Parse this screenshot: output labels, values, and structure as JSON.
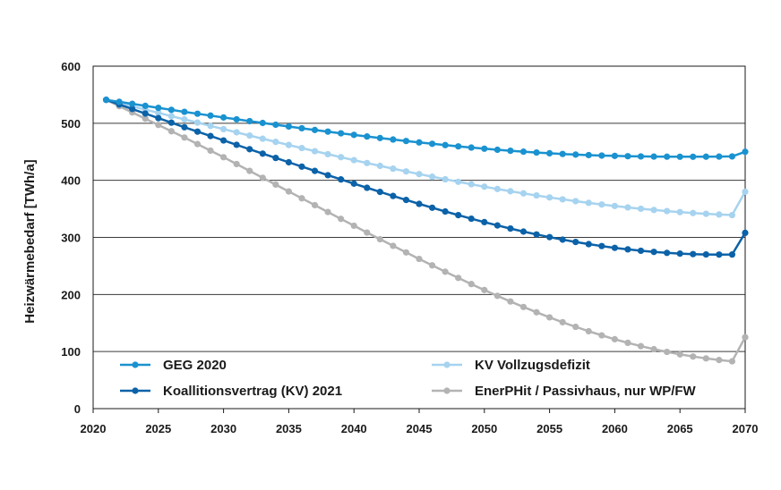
{
  "chart_data": {
    "type": "line",
    "title": "",
    "xlabel": "",
    "ylabel": "Heizwärmebedarf [TWh/a]",
    "xlim": [
      2020,
      2070
    ],
    "ylim": [
      0,
      600
    ],
    "xticks": [
      2020,
      2025,
      2030,
      2035,
      2040,
      2045,
      2050,
      2055,
      2060,
      2065,
      2070
    ],
    "yticks": [
      0,
      100,
      200,
      300,
      400,
      500,
      600
    ],
    "grid": "horizontal",
    "x": [
      2021,
      2022,
      2023,
      2024,
      2025,
      2026,
      2027,
      2028,
      2029,
      2030,
      2031,
      2032,
      2033,
      2034,
      2035,
      2036,
      2037,
      2038,
      2039,
      2040,
      2041,
      2042,
      2043,
      2044,
      2045,
      2046,
      2047,
      2048,
      2049,
      2050,
      2051,
      2052,
      2053,
      2054,
      2055,
      2056,
      2057,
      2058,
      2059,
      2060,
      2061,
      2062,
      2063,
      2064,
      2065,
      2066,
      2067,
      2068,
      2069,
      2070
    ],
    "series": [
      {
        "name": "GEG 2020",
        "color": "#1a92d0",
        "values": [
          541,
          537.5,
          534,
          530.5,
          527,
          523.5,
          520,
          516.7,
          513.4,
          510.1,
          506.9,
          503.7,
          500.5,
          497.4,
          494.3,
          491.2,
          488.2,
          485.3,
          482.4,
          479.6,
          476.8,
          474.1,
          471.5,
          468.9,
          466.4,
          464,
          461.7,
          459.5,
          457.4,
          455.4,
          453.5,
          451.8,
          450.2,
          448.7,
          447.4,
          446.2,
          445.1,
          444.2,
          443.4,
          442.8,
          442.3,
          441.9,
          441.6,
          441.4,
          441.3,
          441.3,
          441.4,
          441.6,
          441.9,
          450
        ]
      },
      {
        "name": "Koallitionsvertrag (KV) 2021",
        "color": "#0b62a8",
        "values": [
          541,
          533,
          525,
          517,
          509,
          501,
          493,
          485.3,
          477.6,
          469.9,
          462.2,
          454.5,
          446.8,
          439.2,
          431.6,
          424,
          416.5,
          409,
          401.6,
          394.2,
          386.9,
          379.7,
          372.6,
          365.6,
          358.7,
          352,
          345.4,
          339,
          332.8,
          326.8,
          321,
          315.5,
          310.2,
          305.2,
          300.5,
          296.1,
          292,
          288.2,
          284.8,
          281.7,
          279,
          276.6,
          274.6,
          272.9,
          271.6,
          270.7,
          270.1,
          269.9,
          270,
          308
        ]
      },
      {
        "name": "KV Vollzugsdefizit",
        "color": "#a6d3ef",
        "values": [
          541,
          535.3,
          529.6,
          523.9,
          518.2,
          512.5,
          506.8,
          501.1,
          495.4,
          489.7,
          484.1,
          478.5,
          472.9,
          467.4,
          461.9,
          456.5,
          451.1,
          445.8,
          440.6,
          435.4,
          430.3,
          425.3,
          420.4,
          415.6,
          410.9,
          406.3,
          401.8,
          397.4,
          393.1,
          388.9,
          384.8,
          380.9,
          377.1,
          373.5,
          370,
          366.7,
          363.5,
          360.5,
          357.7,
          355,
          352.5,
          350.2,
          348.1,
          346.1,
          344.3,
          342.7,
          341.3,
          340.1,
          339.1,
          380
        ]
      },
      {
        "name": "EnerPHit / Passivhaus, nur WP/FW",
        "color": "#b3b3b3",
        "values": [
          541,
          530,
          519,
          508,
          497,
          486,
          475,
          463.5,
          452,
          440.5,
          428.5,
          416.5,
          404.5,
          392.5,
          380.5,
          368.5,
          356.5,
          344.5,
          332.5,
          320.5,
          308.5,
          296.8,
          285.2,
          273.7,
          262.3,
          251,
          239.9,
          229,
          218.3,
          207.8,
          197.6,
          187.7,
          178.1,
          168.8,
          159.9,
          151.4,
          143.3,
          135.6,
          128.4,
          121.6,
          115.3,
          109.5,
          104.2,
          99.4,
          95.1,
          91.3,
          88,
          85.2,
          82.9,
          125
        ]
      }
    ],
    "legend": {
      "placement": "bottom-inside",
      "columns": 2,
      "order": [
        "GEG 2020",
        "KV Vollzugsdefizit",
        "Koallitionsvertrag (KV) 2021",
        "EnerPHit / Passivhaus, nur WP/FW"
      ]
    }
  }
}
